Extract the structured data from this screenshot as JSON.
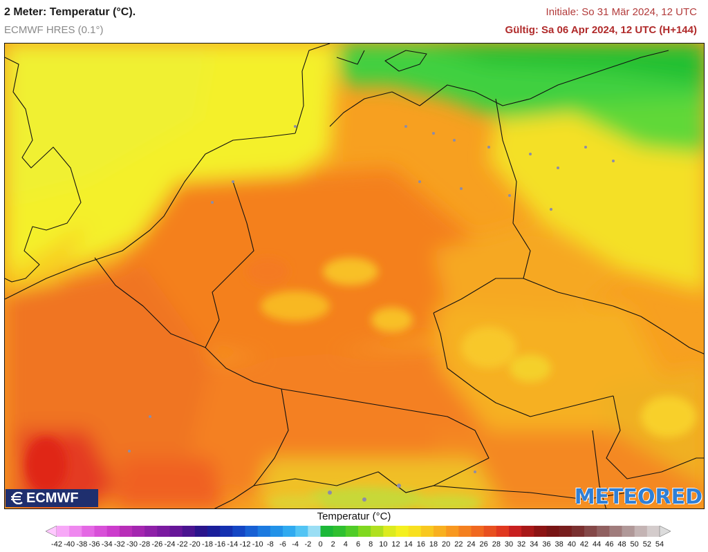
{
  "header": {
    "title": "2 Meter: Temperatur (°C).",
    "model": "ECMWF HRES (0.1°)",
    "initial": "Initiale: So 31 Mär 2024, 12 UTC",
    "valid": "Gültig: Sa 06 Apr 2024, 12 UTC (H+144)"
  },
  "logos": {
    "left": "ECMWF",
    "right": "METEORED"
  },
  "legend": {
    "title": "Temperatur (°C)",
    "labels": [
      "-42",
      "-40",
      "-38",
      "-36",
      "-34",
      "-32",
      "-30",
      "-28",
      "-26",
      "-24",
      "-22",
      "-20",
      "-18",
      "-16",
      "-14",
      "-12",
      "-10",
      "-8",
      "-6",
      "-4",
      "-2",
      "0",
      "2",
      "4",
      "6",
      "8",
      "10",
      "12",
      "14",
      "16",
      "18",
      "20",
      "22",
      "24",
      "26",
      "28",
      "30",
      "32",
      "34",
      "36",
      "38",
      "40",
      "42",
      "44",
      "46",
      "48",
      "50",
      "52",
      "54"
    ],
    "colors": [
      "#ffc8ff",
      "#f7a8f7",
      "#ef88ef",
      "#e468e4",
      "#d850d8",
      "#cc3ccc",
      "#b82eb8",
      "#a426b0",
      "#8e20a8",
      "#7a1aa0",
      "#661698",
      "#4a1490",
      "#2a148c",
      "#1a1e9a",
      "#1430b0",
      "#1446c4",
      "#1860d4",
      "#1c7ae0",
      "#2292e8",
      "#30aaf0",
      "#52c4f4",
      "#9adef4",
      "#1cb838",
      "#30c030",
      "#50cc28",
      "#80d820",
      "#b0e020",
      "#dceb20",
      "#f4f020",
      "#f8e020",
      "#f8c820",
      "#f8b020",
      "#f89820",
      "#f48020",
      "#f06820",
      "#e85020",
      "#e03820",
      "#c82020",
      "#a81818",
      "#8c1414",
      "#781414",
      "#781e1e",
      "#7a3030",
      "#844848",
      "#906060",
      "#a07c7c",
      "#b09898",
      "#c4b4b4",
      "#d4cccc",
      "#dcdcdc"
    ]
  }
}
